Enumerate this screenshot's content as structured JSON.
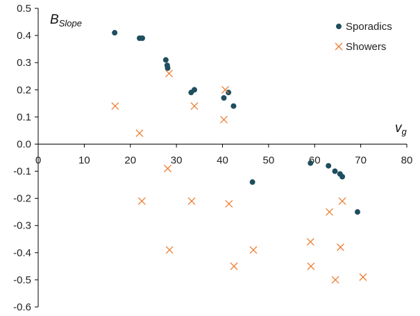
{
  "chart_data": {
    "type": "scatter",
    "ylabel": {
      "main": "B",
      "sub": "Slope"
    },
    "xlabel": {
      "main": "v",
      "sub": "g"
    },
    "xlim": [
      0,
      80
    ],
    "ylim": [
      -0.6,
      0.5
    ],
    "x_ticks": [
      0,
      10,
      20,
      30,
      40,
      50,
      60,
      70,
      80
    ],
    "x_tick_labels": [
      "0",
      "10",
      "20",
      "30",
      "40",
      "50",
      "60",
      "70",
      "80"
    ],
    "y_ticks": [
      0.5,
      0.4,
      0.3,
      0.2,
      0.1,
      0.0,
      -0.1,
      -0.2,
      -0.3,
      -0.4,
      -0.5,
      -0.6
    ],
    "y_tick_labels": [
      "0.5",
      "0.4",
      "0.3",
      "0.2",
      "0.1",
      "0.0",
      "-0.1",
      "-0.2",
      "-0.3",
      "-0.4",
      "-0.5",
      "-0.6"
    ],
    "grid": false,
    "legend_position": "top-right",
    "series": [
      {
        "name": "Sporadics",
        "marker": "circle",
        "color": "#1f4e5f",
        "points": [
          [
            16.6,
            0.41
          ],
          [
            22.0,
            0.39
          ],
          [
            22.6,
            0.39
          ],
          [
            27.7,
            0.31
          ],
          [
            28.0,
            0.29
          ],
          [
            28.1,
            0.28
          ],
          [
            33.2,
            0.19
          ],
          [
            33.9,
            0.2
          ],
          [
            40.3,
            0.17
          ],
          [
            41.3,
            0.19
          ],
          [
            42.4,
            0.14
          ],
          [
            46.5,
            -0.14
          ],
          [
            59.1,
            -0.07
          ],
          [
            63.0,
            -0.08
          ],
          [
            64.4,
            -0.1
          ],
          [
            65.5,
            -0.11
          ],
          [
            66.0,
            -0.12
          ],
          [
            69.3,
            -0.25
          ]
        ]
      },
      {
        "name": "Showers",
        "marker": "x",
        "color": "#ed7d31",
        "points": [
          [
            16.7,
            0.14
          ],
          [
            22.0,
            0.04
          ],
          [
            22.5,
            -0.21
          ],
          [
            28.1,
            -0.09
          ],
          [
            28.4,
            0.26
          ],
          [
            28.5,
            -0.39
          ],
          [
            33.3,
            -0.21
          ],
          [
            33.9,
            0.14
          ],
          [
            40.3,
            0.09
          ],
          [
            40.6,
            0.2
          ],
          [
            41.4,
            -0.22
          ],
          [
            42.5,
            -0.45
          ],
          [
            46.7,
            -0.39
          ],
          [
            59.1,
            -0.36
          ],
          [
            59.2,
            -0.45
          ],
          [
            63.2,
            -0.25
          ],
          [
            64.5,
            -0.5
          ],
          [
            65.6,
            -0.38
          ],
          [
            66.0,
            -0.21
          ],
          [
            70.5,
            -0.49
          ]
        ]
      }
    ]
  }
}
